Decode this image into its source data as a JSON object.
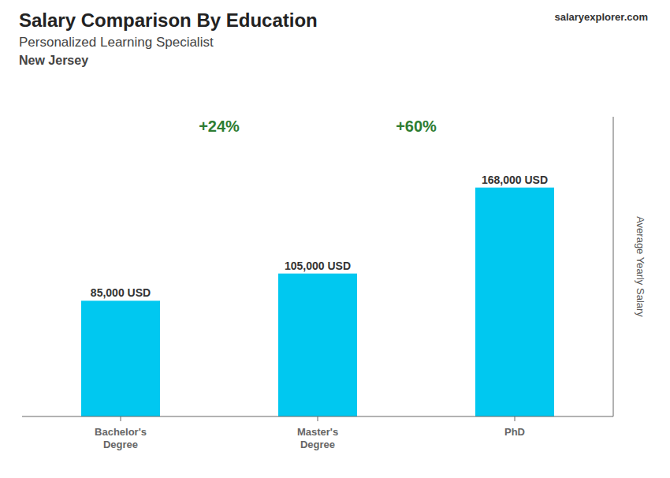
{
  "chart_data": {
    "type": "bar",
    "title": "Salary Comparison By Education",
    "subtitle": [
      "Personalized Learning Specialist",
      "New Jersey"
    ],
    "y_label": "Average Yearly Salary",
    "categories": [
      "Bachelor's\nDegree",
      "Master's\nDegree",
      "PhD"
    ],
    "values": [
      85000,
      105000,
      168000
    ],
    "value_labels": [
      "85,000 USD",
      "105,000 USD",
      "168,000 USD"
    ],
    "data_labels": true,
    "color": "#00c8f0",
    "ylim": [
      0,
      220000
    ],
    "grid": false,
    "tick_labels": "x",
    "annotations": [
      "+24%",
      "+60%",
      "salaryexplorer.com"
    ]
  }
}
